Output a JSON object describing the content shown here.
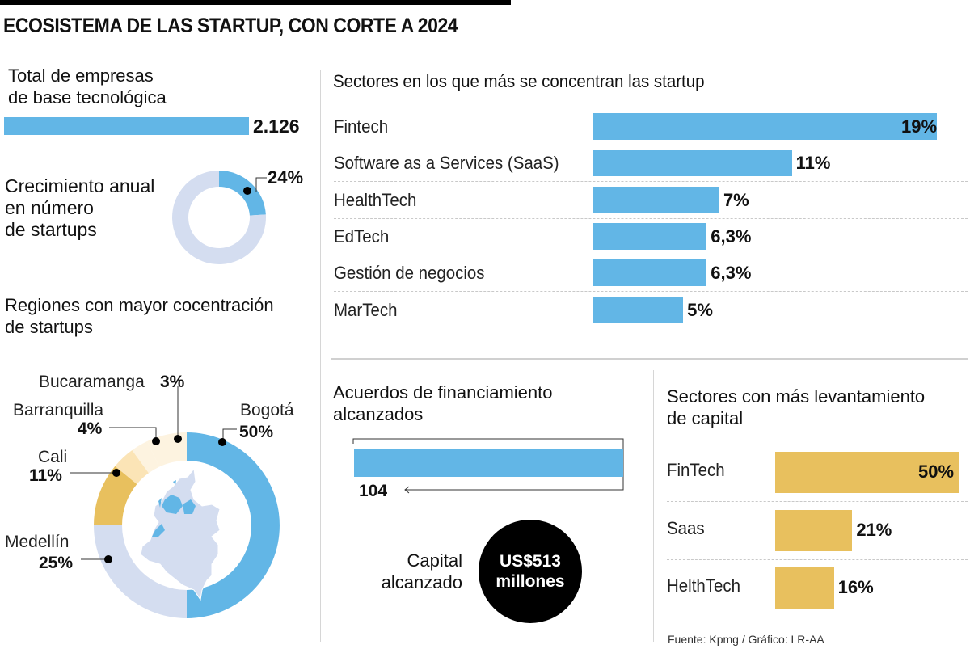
{
  "title": "ECOSISTEMA DE LAS STARTUP, CON CORTE A 2024",
  "colors": {
    "blue": "#62b6e6",
    "gold": "#e8c05e",
    "lavender": "#d4ddf0",
    "peach": "#fbe4b6",
    "cream": "#fdf3e0",
    "black": "#000000"
  },
  "total_companies": {
    "title_line1": "Total de empresas",
    "title_line2": "de base tecnológica",
    "value_label": "2.126"
  },
  "annual_growth": {
    "title_line1": "Crecimiento anual",
    "title_line2": "en número",
    "title_line3": "de startups",
    "value_label": "24%"
  },
  "regions": {
    "title_line1": "Regiones con mayor cocentración",
    "title_line2": "de startups"
  },
  "sectors": {
    "title": "Sectores en los que más se concentran las startup"
  },
  "funding": {
    "title_line1": "Acuerdos de financiamiento",
    "title_line2": "alcanzados",
    "value_label": "104",
    "capital_label_line1": "Capital",
    "capital_label_line2": "alcanzado",
    "capital_value_line1": "US$513",
    "capital_value_line2": "millones"
  },
  "capital_sectors": {
    "title_line1": "Sectores con más levantamiento",
    "title_line2": "de capital"
  },
  "source": "Fuente: Kpmg / Gráfico: LR-AA",
  "chart_data": [
    {
      "id": "total_companies",
      "type": "bar",
      "title": "Total de empresas de base tecnológica",
      "categories": [
        "Empresas"
      ],
      "values": [
        2126
      ],
      "value_labels": [
        "2.126"
      ]
    },
    {
      "id": "annual_growth",
      "type": "pie",
      "title": "Crecimiento anual en número de startups",
      "categories": [
        "Crecimiento",
        "Resto"
      ],
      "values": [
        24,
        76
      ],
      "value_labels": [
        "24%",
        ""
      ]
    },
    {
      "id": "regions",
      "type": "pie",
      "title": "Regiones con mayor cocentración de startups",
      "categories": [
        "Bogotá",
        "Medellín",
        "Cali",
        "Barranquilla",
        "Bucaramanga"
      ],
      "values": [
        50,
        25,
        11,
        4,
        3
      ],
      "value_labels": [
        "50%",
        "25%",
        "11%",
        "4%",
        "3%"
      ]
    },
    {
      "id": "sectors",
      "type": "bar",
      "orientation": "horizontal",
      "title": "Sectores en los que más se concentran las startup",
      "categories": [
        "Fintech",
        "Software as a Services (SaaS)",
        "HealthTech",
        "EdTech",
        "Gestión de negocios",
        "MarTech"
      ],
      "values": [
        19,
        11,
        7,
        6.3,
        6.3,
        5
      ],
      "value_labels": [
        "19%",
        "11%",
        "7%",
        "6,3%",
        "6,3%",
        "5%"
      ],
      "unit": "%"
    },
    {
      "id": "funding_deals",
      "type": "bar",
      "title": "Acuerdos de financiamiento alcanzados",
      "categories": [
        "Acuerdos"
      ],
      "values": [
        104
      ],
      "value_labels": [
        "104"
      ]
    },
    {
      "id": "capital_sectors",
      "type": "bar",
      "orientation": "horizontal",
      "title": "Sectores con más levantamiento de capital",
      "categories": [
        "FinTech",
        "Saas",
        "HelthTech"
      ],
      "values": [
        50,
        21,
        16
      ],
      "value_labels": [
        "50%",
        "21%",
        "16%"
      ],
      "unit": "%"
    }
  ]
}
